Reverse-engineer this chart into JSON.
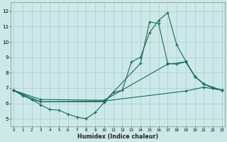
{
  "xlabel": "Humidex (Indice chaleur)",
  "bg_color": "#cce8e8",
  "grid_color": "#aacccc",
  "line_color": "#1a6b5a",
  "xlim_min": -0.3,
  "xlim_max": 23.3,
  "ylim_min": 4.5,
  "ylim_max": 12.6,
  "xtick_vals": [
    0,
    1,
    2,
    3,
    4,
    5,
    6,
    7,
    8,
    9,
    10,
    11,
    12,
    13,
    14,
    15,
    16,
    17,
    18,
    19,
    20,
    21,
    22,
    23
  ],
  "ytick_vals": [
    5,
    6,
    7,
    8,
    9,
    10,
    11,
    12
  ],
  "line1_x": [
    0,
    1,
    2,
    3,
    4,
    5,
    6,
    7,
    8,
    9,
    10,
    11,
    12,
    13,
    14,
    15,
    16,
    17,
    18,
    19,
    20,
    21,
    22,
    23
  ],
  "line1_y": [
    6.85,
    6.5,
    6.25,
    5.9,
    5.6,
    5.55,
    5.3,
    5.1,
    5.0,
    5.4,
    6.05,
    6.7,
    6.85,
    8.7,
    9.0,
    10.6,
    11.4,
    11.9,
    9.8,
    8.75,
    7.75,
    7.25,
    7.0,
    6.85
  ],
  "line2_x": [
    0,
    2,
    3,
    10,
    14,
    15,
    16,
    17,
    18,
    19,
    20,
    21,
    23
  ],
  "line2_y": [
    6.85,
    6.25,
    6.1,
    6.1,
    8.6,
    11.3,
    11.2,
    8.6,
    8.55,
    8.7,
    7.75,
    7.25,
    6.85
  ],
  "line3_x": [
    0,
    3,
    10,
    17,
    19,
    20,
    21,
    22,
    23
  ],
  "line3_y": [
    6.85,
    6.25,
    6.2,
    8.55,
    8.7,
    7.75,
    7.25,
    7.0,
    6.85
  ],
  "line4_x": [
    0,
    3,
    10,
    19,
    21,
    23
  ],
  "line4_y": [
    6.85,
    6.1,
    6.15,
    6.8,
    7.05,
    6.85
  ]
}
